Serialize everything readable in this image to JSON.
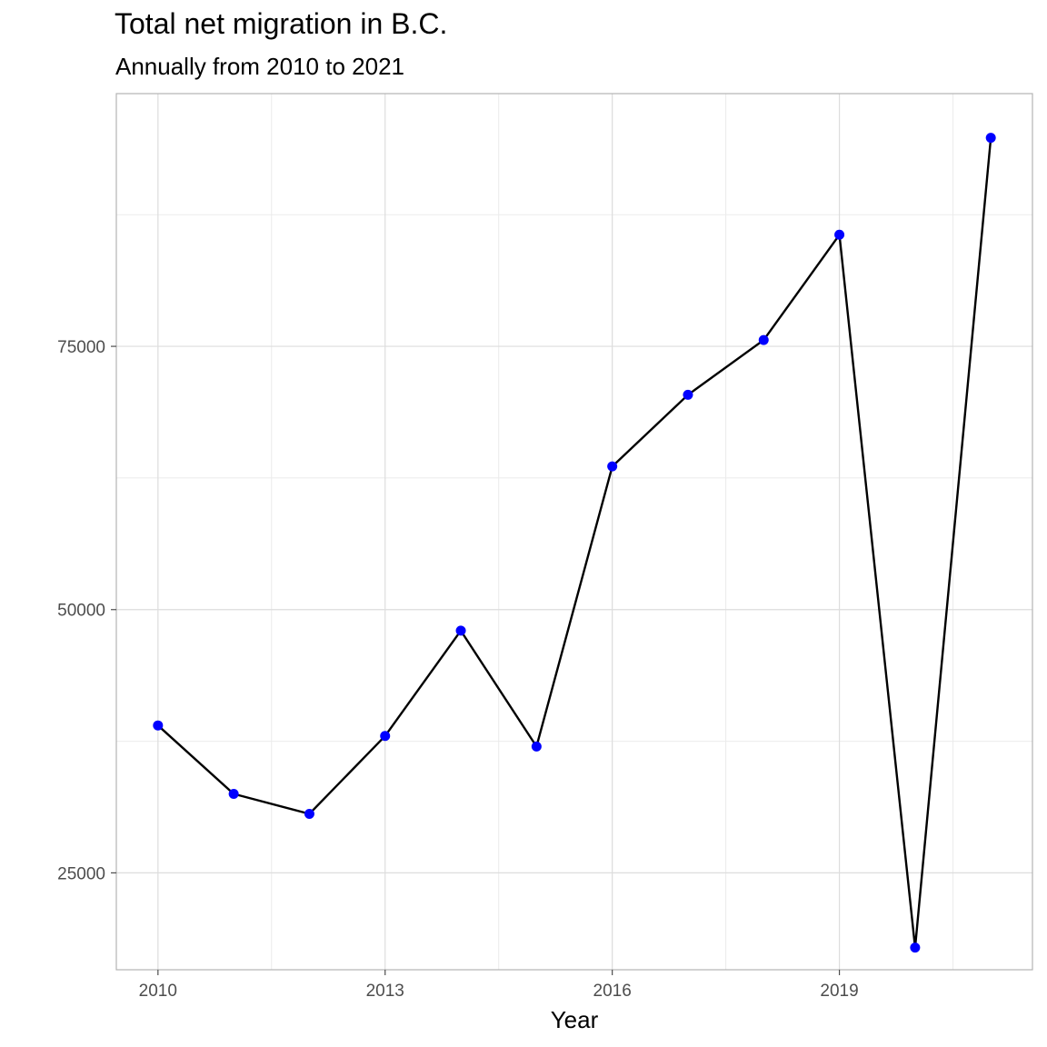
{
  "chart_data": {
    "type": "line",
    "title": "Total net migration in B.C.",
    "subtitle": "Annually from 2010 to 2021",
    "xlabel": "Year",
    "ylabel": "",
    "x": [
      2010,
      2011,
      2012,
      2013,
      2014,
      2015,
      2016,
      2017,
      2018,
      2019,
      2020,
      2021
    ],
    "values": [
      39000,
      32500,
      30600,
      38000,
      48000,
      37000,
      63600,
      70400,
      75600,
      85600,
      17900,
      94800
    ],
    "x_ticks": [
      2010,
      2013,
      2016,
      2019
    ],
    "y_ticks": [
      25000,
      50000,
      75000
    ],
    "xlim": [
      2009.45,
      2021.55
    ],
    "ylim": [
      15800,
      99000
    ],
    "grid": true,
    "line_color": "#000000",
    "point_color": "#0000ff",
    "grid_color": "#dddddd",
    "legend": "none"
  }
}
